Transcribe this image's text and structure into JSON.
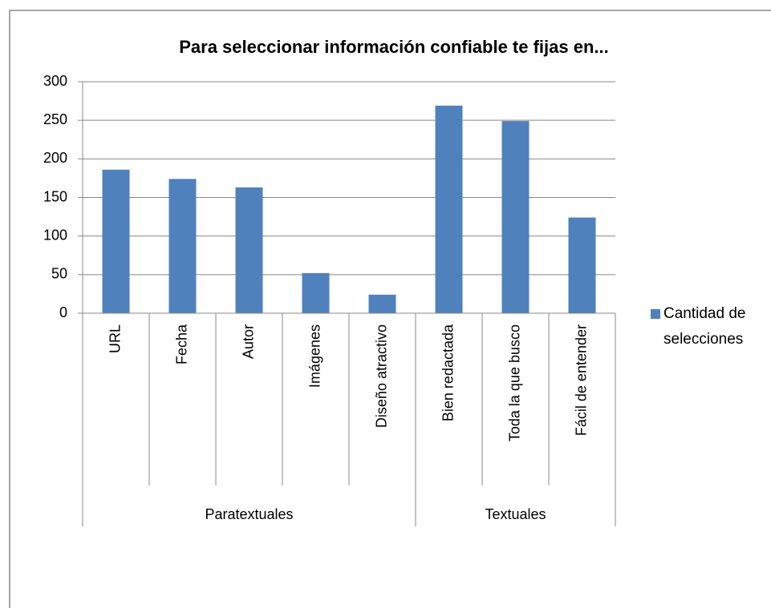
{
  "chart_data": {
    "type": "bar",
    "title": "Para seleccionar información confiable te fijas en...",
    "categories": [
      "URL",
      "Fecha",
      "Autor",
      "Imágenes",
      "Diseño atractivo",
      "Bien redactada",
      "Toda la que busco",
      "Fácil de entender"
    ],
    "groups": [
      {
        "name": "Paratextuales",
        "span": 5
      },
      {
        "name": "Textuales",
        "span": 3
      }
    ],
    "series": [
      {
        "name": "Cantidad de selecciones",
        "color": "#4f81bd",
        "values": [
          186,
          174,
          163,
          52,
          24,
          269,
          249,
          124
        ]
      }
    ],
    "ylim": [
      0,
      300
    ],
    "yticks": [
      0,
      50,
      100,
      150,
      200,
      250,
      300
    ],
    "grid": true,
    "legend": "right"
  }
}
